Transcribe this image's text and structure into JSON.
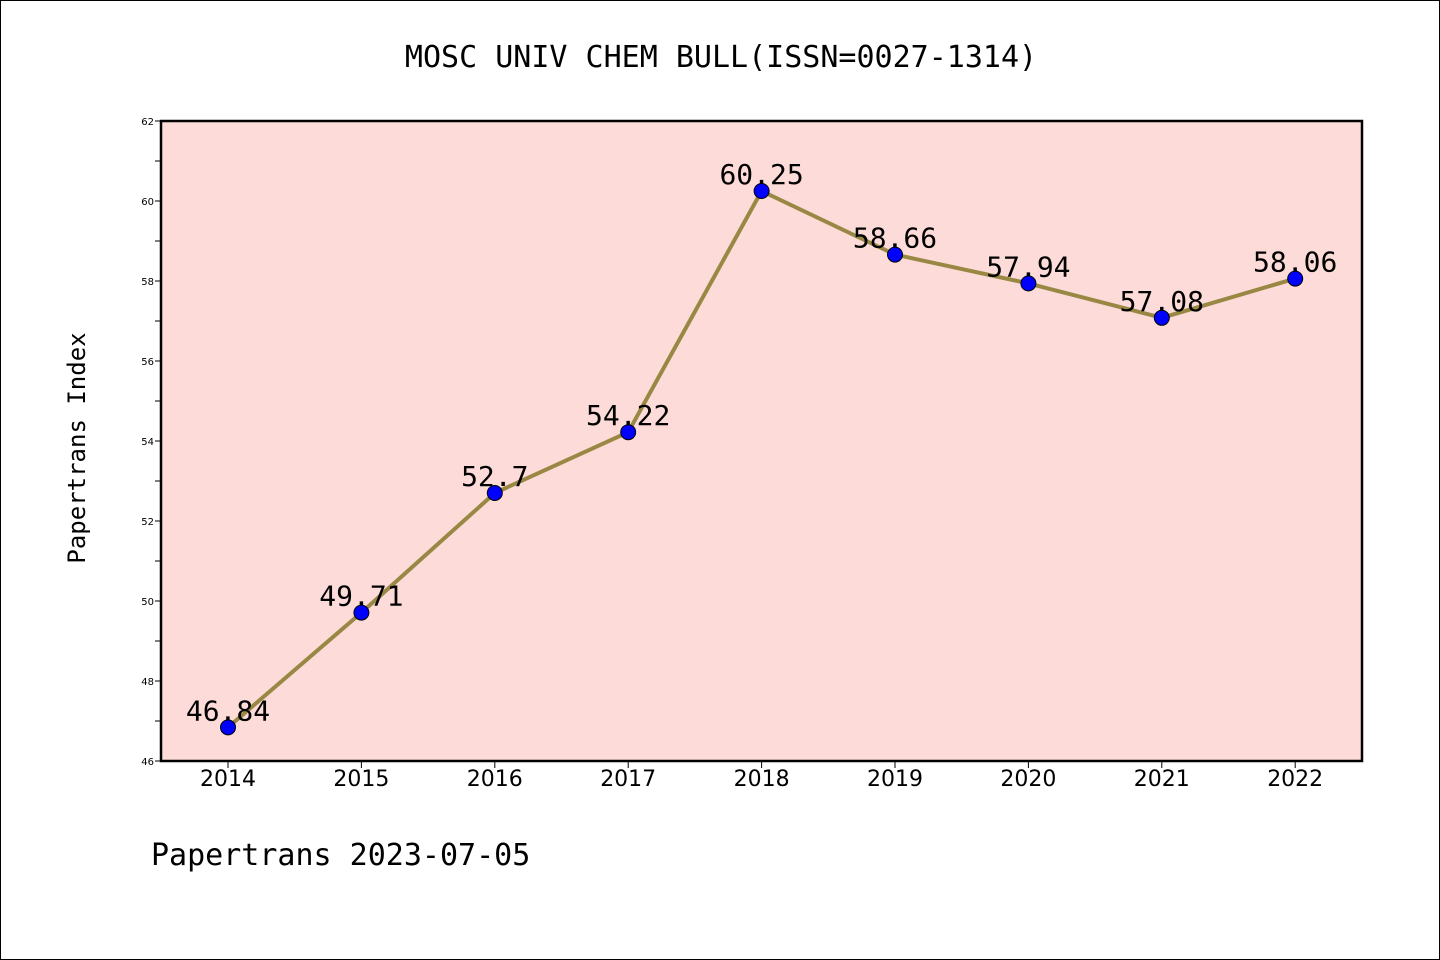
{
  "chart_data": {
    "type": "line",
    "title": "MOSC UNIV CHEM BULL(ISSN=0027-1314)",
    "xlabel": "",
    "ylabel": "Papertrans Index",
    "footer": "Papertrans 2023-07-05",
    "categories": [
      "2014",
      "2015",
      "2016",
      "2017",
      "2018",
      "2019",
      "2020",
      "2021",
      "2022"
    ],
    "series": [
      {
        "values": [
          46.84,
          49.71,
          52.7,
          54.22,
          60.25,
          58.66,
          57.94,
          57.08,
          58.06
        ]
      }
    ],
    "data_labels": [
      "46.84",
      "49.71",
      "52.7",
      "54.22",
      "60.25",
      "58.66",
      "57.94",
      "57.08",
      "58.06"
    ],
    "ylim": [
      46,
      62
    ],
    "y_major_ticks": [
      46,
      48,
      50,
      52,
      54,
      56,
      58,
      60,
      62
    ],
    "y_minor_step": 1,
    "grid": false,
    "legend": "none",
    "colors": {
      "plot_background": "#fddbd8",
      "line": "#998844",
      "marker": "#0000ff",
      "marker_edge": "#000000",
      "axes": "#000000"
    }
  }
}
